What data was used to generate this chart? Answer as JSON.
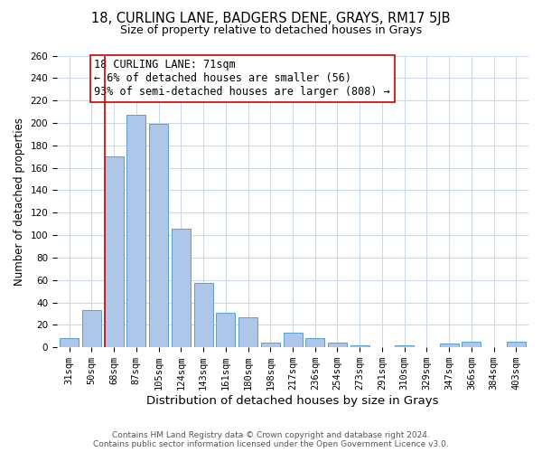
{
  "title1": "18, CURLING LANE, BADGERS DENE, GRAYS, RM17 5JB",
  "title2": "Size of property relative to detached houses in Grays",
  "xlabel": "Distribution of detached houses by size in Grays",
  "ylabel": "Number of detached properties",
  "footer1": "Contains HM Land Registry data © Crown copyright and database right 2024.",
  "footer2": "Contains public sector information licensed under the Open Government Licence v3.0.",
  "annotation_line1": "18 CURLING LANE: 71sqm",
  "annotation_line2": "← 6% of detached houses are smaller (56)",
  "annotation_line3": "93% of semi-detached houses are larger (808) →",
  "bar_labels": [
    "31sqm",
    "50sqm",
    "68sqm",
    "87sqm",
    "105sqm",
    "124sqm",
    "143sqm",
    "161sqm",
    "180sqm",
    "198sqm",
    "217sqm",
    "236sqm",
    "254sqm",
    "273sqm",
    "291sqm",
    "310sqm",
    "329sqm",
    "347sqm",
    "366sqm",
    "384sqm",
    "403sqm"
  ],
  "bar_values": [
    8,
    33,
    170,
    207,
    199,
    106,
    57,
    31,
    27,
    4,
    13,
    8,
    4,
    2,
    0,
    2,
    0,
    3,
    5,
    0,
    5
  ],
  "bar_color": "#aec6e8",
  "bar_edge_color": "#5a9fd4",
  "vline_index": 2,
  "ylim": [
    0,
    260
  ],
  "yticks": [
    0,
    20,
    40,
    60,
    80,
    100,
    120,
    140,
    160,
    180,
    200,
    220,
    240,
    260
  ],
  "bg_color": "#ffffff",
  "grid_color": "#ccd9e8",
  "vline_color": "#cc0000",
  "box_edge_color": "#cc0000",
  "title1_fontsize": 10.5,
  "title2_fontsize": 9,
  "xlabel_fontsize": 9.5,
  "ylabel_fontsize": 8.5,
  "annotation_fontsize": 8.5,
  "tick_fontsize": 7.5,
  "footer_fontsize": 6.5
}
